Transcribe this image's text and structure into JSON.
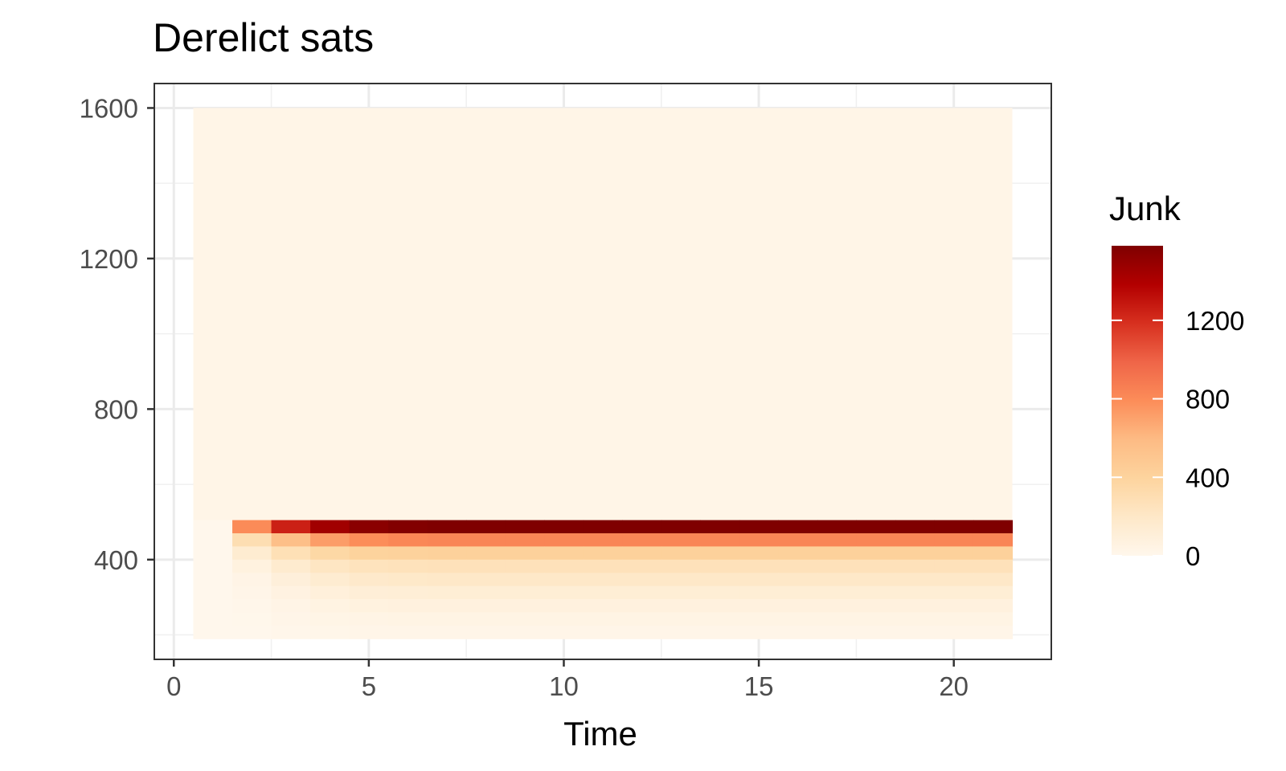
{
  "chart_data": {
    "type": "heatmap",
    "title": "Derelict sats",
    "xlabel": "Time",
    "ylabel": "",
    "xlim": [
      -0.5,
      22.5
    ],
    "ylim": [
      135,
      1665
    ],
    "x_ticks": [
      0,
      5,
      10,
      15,
      20
    ],
    "y_ticks": [
      400,
      800,
      1200,
      1600
    ],
    "x_cells": [
      1,
      21
    ],
    "y_range": [
      200,
      1600
    ],
    "band_height": 35,
    "grid": true,
    "legend": {
      "title": "Junk",
      "position": "right",
      "min": 0,
      "max": 1580,
      "ticks": [
        0,
        400,
        800,
        1200
      ],
      "colors": [
        "#fff7ec",
        "#fee8c8",
        "#fdd49e",
        "#fdbb84",
        "#fc8d59",
        "#ef6548",
        "#d7301f",
        "#b30000",
        "#7f0000"
      ]
    },
    "rows": [
      {
        "y": 487.5,
        "values": [
          0,
          800,
          1250,
          1450,
          1540,
          1570,
          1580,
          1580,
          1580,
          1580,
          1580,
          1580,
          1580,
          1580,
          1580,
          1580,
          1580,
          1580,
          1580,
          1580,
          1580
        ]
      },
      {
        "y": 452.5,
        "values": [
          0,
          300,
          560,
          720,
          790,
          820,
          830,
          830,
          830,
          830,
          830,
          830,
          830,
          830,
          830,
          830,
          830,
          830,
          830,
          830,
          830
        ]
      },
      {
        "y": 417.5,
        "values": [
          0,
          150,
          280,
          360,
          400,
          410,
          415,
          415,
          415,
          415,
          415,
          415,
          415,
          415,
          415,
          415,
          415,
          415,
          415,
          415,
          415
        ]
      },
      {
        "y": 382.5,
        "values": [
          0,
          70,
          160,
          220,
          250,
          260,
          265,
          265,
          265,
          265,
          265,
          265,
          265,
          265,
          265,
          265,
          265,
          265,
          265,
          265,
          265
        ]
      },
      {
        "y": 347.5,
        "values": [
          0,
          35,
          100,
          150,
          180,
          190,
          195,
          195,
          195,
          195,
          195,
          195,
          195,
          195,
          195,
          195,
          195,
          195,
          195,
          195,
          195
        ]
      },
      {
        "y": 312.5,
        "values": [
          0,
          20,
          60,
          95,
          115,
          120,
          125,
          125,
          125,
          125,
          125,
          125,
          125,
          125,
          125,
          125,
          125,
          125,
          125,
          125,
          125
        ]
      },
      {
        "y": 277.5,
        "values": [
          0,
          10,
          35,
          55,
          70,
          75,
          78,
          78,
          78,
          78,
          78,
          78,
          78,
          78,
          78,
          78,
          78,
          78,
          78,
          78,
          78
        ]
      },
      {
        "y": 242.5,
        "values": [
          0,
          5,
          20,
          32,
          40,
          43,
          45,
          45,
          45,
          45,
          45,
          45,
          45,
          45,
          45,
          45,
          45,
          45,
          45,
          45,
          45
        ]
      },
      {
        "y": 207.5,
        "values": [
          0,
          2,
          10,
          16,
          20,
          22,
          23,
          23,
          23,
          23,
          23,
          23,
          23,
          23,
          23,
          23,
          23,
          23,
          23,
          23,
          23
        ]
      }
    ],
    "background_value": 30
  }
}
